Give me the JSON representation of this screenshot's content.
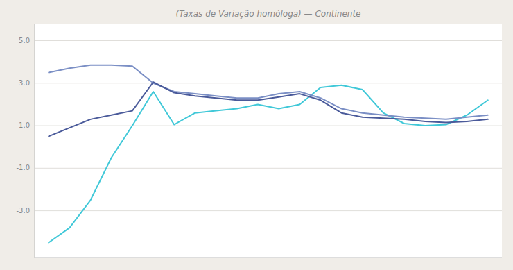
{
  "chart_data": {
    "type": "line",
    "title": "(Taxas de Variação homóloga) — Continente",
    "categories": [
      null,
      null,
      null,
      null,
      null,
      null,
      null,
      null,
      null,
      null,
      null,
      null,
      null,
      null,
      null,
      null,
      null,
      null,
      null,
      null,
      null,
      null
    ],
    "series": [
      {
        "color": "#40c8d8",
        "values": [
          -4.5,
          -3.8,
          -2.5,
          -0.5,
          1.0,
          2.6,
          1.05,
          1.6,
          1.7,
          1.8,
          2.0,
          1.8,
          2.0,
          2.8,
          2.9,
          2.7,
          1.6,
          1.1,
          1.0,
          1.05,
          1.5,
          2.2
        ]
      },
      {
        "color": "#7b8fc5",
        "values": [
          3.5,
          3.7,
          3.85,
          3.85,
          3.8,
          3.0,
          2.6,
          2.5,
          2.4,
          2.3,
          2.3,
          2.5,
          2.6,
          2.3,
          1.8,
          1.6,
          1.5,
          1.4,
          1.35,
          1.3,
          1.4,
          1.5
        ]
      },
      {
        "color": "#4a5a9a",
        "values": [
          0.5,
          0.9,
          1.3,
          1.5,
          1.7,
          3.05,
          2.55,
          2.4,
          2.3,
          2.2,
          2.2,
          2.35,
          2.5,
          2.2,
          1.6,
          1.4,
          1.35,
          1.3,
          1.2,
          1.15,
          1.2,
          1.3
        ]
      }
    ],
    "ylim": [
      -5.2,
      5.8
    ],
    "yticks": [
      {
        "value": 5.0,
        "label": "5.0"
      },
      {
        "value": 3.0,
        "label": "3.0"
      },
      {
        "value": 1.0,
        "label": "1.0"
      },
      {
        "value": -1.0,
        "label": "-1.0"
      },
      {
        "value": -3.0,
        "label": "-3.0"
      }
    ],
    "grid": true,
    "tick_labels": "y"
  }
}
